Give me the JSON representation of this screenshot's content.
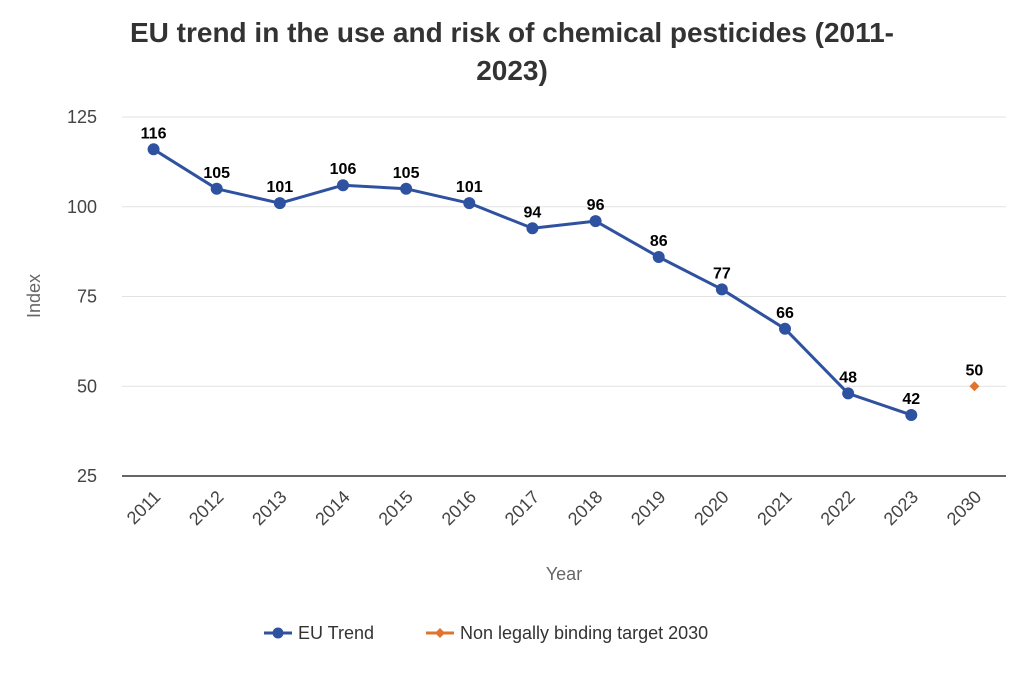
{
  "chart_data": {
    "type": "line",
    "title_lines": [
      "EU trend in the use and risk of chemical pesticides (2011-",
      "2023)"
    ],
    "xlabel": "Year",
    "ylabel": "Index",
    "ylim": [
      25,
      125
    ],
    "yticks": [
      25,
      50,
      75,
      100,
      125
    ],
    "categories": [
      "2011",
      "2012",
      "2013",
      "2014",
      "2015",
      "2016",
      "2017",
      "2018",
      "2019",
      "2020",
      "2021",
      "2022",
      "2023",
      "2030"
    ],
    "series": [
      {
        "name": "EU Trend",
        "color": "#2f52a0",
        "marker": "circle",
        "x": [
          "2011",
          "2012",
          "2013",
          "2014",
          "2015",
          "2016",
          "2017",
          "2018",
          "2019",
          "2020",
          "2021",
          "2022",
          "2023"
        ],
        "values": [
          116,
          105,
          101,
          106,
          105,
          101,
          94,
          96,
          86,
          77,
          66,
          48,
          42
        ]
      },
      {
        "name": "Non legally binding target 2030",
        "color": "#e0732e",
        "marker": "diamond",
        "x": [
          "2030"
        ],
        "values": [
          50
        ]
      }
    ],
    "legend_position": "bottom-center",
    "grid": true
  }
}
